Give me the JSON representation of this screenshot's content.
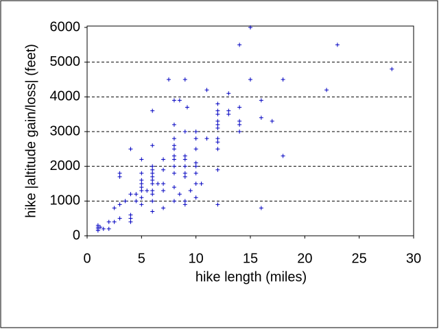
{
  "chart_data": {
    "type": "scatter",
    "x_label": "hike length (miles)",
    "y_label": "hike |altitude gain/loss| (feet)",
    "color": "#0000c0",
    "grid": true,
    "xlim": [
      0,
      30
    ],
    "xticks": [
      0,
      5,
      10,
      15,
      20,
      25,
      30
    ],
    "ylim": [
      0,
      6000
    ],
    "yticks": [
      0,
      1000,
      2000,
      3000,
      4000,
      5000,
      6000
    ],
    "x": [
      1,
      1,
      1,
      1,
      1.2,
      1.5,
      2,
      2,
      2.5,
      2.5,
      3,
      3,
      3,
      3,
      3.5,
      4,
      4,
      4,
      4,
      4,
      4.5,
      4.5,
      5,
      5,
      5,
      5,
      5,
      5,
      5,
      5,
      5.5,
      6,
      6,
      6,
      6,
      6,
      6,
      6,
      6,
      6,
      6,
      6,
      6,
      6.5,
      7,
      7,
      7,
      7,
      7,
      7.5,
      8,
      8,
      8,
      8,
      8,
      8,
      8,
      8,
      8,
      8,
      8,
      8.5,
      8.5,
      9,
      9,
      9,
      9,
      9,
      9,
      9,
      9,
      9,
      9.2,
      9.5,
      10,
      10,
      10,
      10,
      10,
      10,
      10,
      10,
      10.5,
      11,
      11,
      12,
      12,
      12,
      12,
      12,
      12,
      12,
      12,
      12,
      12,
      12,
      13,
      13,
      13,
      14,
      14,
      14,
      14,
      14,
      15,
      15,
      16,
      16,
      16,
      17,
      18,
      18,
      22,
      23,
      28
    ],
    "y": [
      150,
      200,
      250,
      300,
      250,
      200,
      200,
      400,
      400,
      800,
      500,
      900,
      1700,
      1800,
      1000,
      400,
      500,
      600,
      1200,
      2500,
      1000,
      1200,
      900,
      1100,
      1300,
      1400,
      1500,
      1600,
      1800,
      2200,
      1300,
      700,
      1000,
      1200,
      1300,
      1500,
      1600,
      1700,
      1800,
      1900,
      2000,
      2600,
      3600,
      1500,
      800,
      1300,
      1500,
      1900,
      2200,
      4500,
      1000,
      1400,
      1800,
      2000,
      2200,
      2300,
      2500,
      2600,
      2800,
      3200,
      3900,
      1200,
      3900,
      900,
      1000,
      1700,
      1800,
      2000,
      2200,
      2300,
      3000,
      4500,
      3700,
      1300,
      1100,
      1500,
      1800,
      2000,
      2100,
      2500,
      2800,
      3000,
      1500,
      2800,
      4200,
      900,
      1900,
      2500,
      2700,
      2800,
      3100,
      3200,
      3300,
      3500,
      3600,
      3800,
      3500,
      3600,
      4100,
      3000,
      3200,
      3300,
      3700,
      5500,
      4500,
      6000,
      800,
      3400,
      3900,
      3300,
      2300,
      4500,
      4200,
      5500,
      4800
    ]
  }
}
